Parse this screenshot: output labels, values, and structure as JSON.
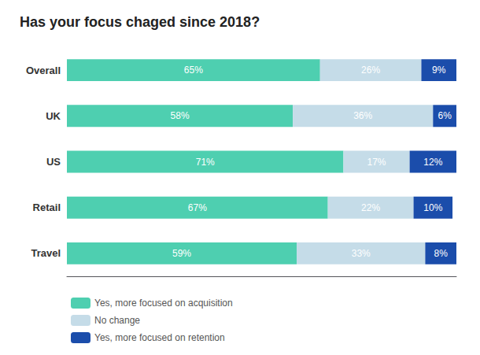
{
  "chart_data": {
    "type": "bar",
    "orientation": "horizontal",
    "stacked": true,
    "title": "Has your focus chaged since 2018?",
    "categories": [
      "Overall",
      "UK",
      "US",
      "Retail",
      "Travel"
    ],
    "series": [
      {
        "name": "Yes, more focused on acquisition",
        "color": "#4ECFB0",
        "values": [
          65,
          58,
          71,
          67,
          59
        ],
        "value_labels": [
          "65%",
          "58%",
          "71%",
          "67%",
          "59%"
        ]
      },
      {
        "name": "No change",
        "color": "#C5DCE8",
        "values": [
          26,
          36,
          17,
          22,
          33
        ],
        "value_labels": [
          "26%",
          "36%",
          "17%",
          "22%",
          "33%"
        ]
      },
      {
        "name": "Yes, more focused on retention",
        "color": "#1B4DAB",
        "values": [
          9,
          6,
          12,
          10,
          8
        ],
        "value_labels": [
          "9%",
          "6%",
          "12%",
          "10%",
          "8%"
        ]
      }
    ],
    "xlim": [
      0,
      100
    ],
    "grid": false,
    "legend": "lower left",
    "data_labels": true,
    "tick_labels": "y"
  }
}
